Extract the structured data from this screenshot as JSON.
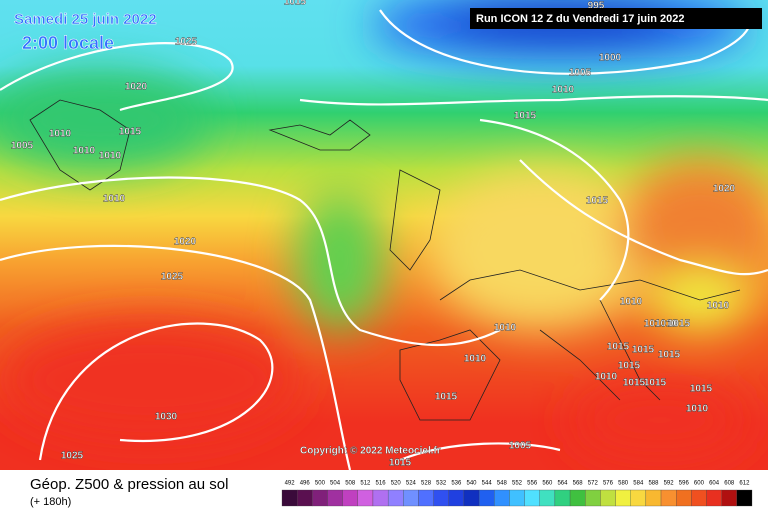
{
  "header": {
    "date": "Samedi 25 juin 2022",
    "time": "2:00 locale",
    "run": "Run ICON 12 Z du Vendredi 17 juin 2022"
  },
  "copyright": "Copyright © 2022 Meteociel.fr",
  "footer": {
    "title": "Géop. Z500 & pression au sol",
    "subtitle": "(+ 180h)"
  },
  "legend": {
    "values": [
      492,
      496,
      500,
      504,
      508,
      512,
      516,
      520,
      524,
      528,
      532,
      536,
      540,
      544,
      548,
      552,
      556,
      560,
      564,
      568,
      572,
      576,
      580,
      584,
      588,
      592,
      596,
      600,
      604,
      608,
      612
    ],
    "colors": [
      "#3a0a3a",
      "#5a1050",
      "#80207a",
      "#a030a0",
      "#c040c0",
      "#d060e0",
      "#b070f0",
      "#9080ff",
      "#7090ff",
      "#5070ff",
      "#3050f0",
      "#2040e0",
      "#1030c0",
      "#2060f0",
      "#3090ff",
      "#40c0ff",
      "#50e0ff",
      "#40e0c0",
      "#30d080",
      "#40c040",
      "#80d040",
      "#c0e040",
      "#f0f040",
      "#f8d840",
      "#f8b830",
      "#f89030",
      "#f07020",
      "#f05020",
      "#e83020",
      "#b01010",
      "#000000"
    ]
  },
  "isobar_labels": [
    "1015",
    "1025",
    "1020",
    "1010",
    "1005",
    "1010",
    "1010",
    "1015",
    "1010",
    "1020",
    "1025",
    "1030",
    "1025",
    "995",
    "1000",
    "1005",
    "1010",
    "1015",
    "1015",
    "1020",
    "1010",
    "1010",
    "1010",
    "1015",
    "1005",
    "1015",
    "1010",
    "1010",
    "1015",
    "1010",
    "1015",
    "1015",
    "1010",
    "1015",
    "1015",
    "1015",
    "1015",
    "1015",
    "1010"
  ]
}
